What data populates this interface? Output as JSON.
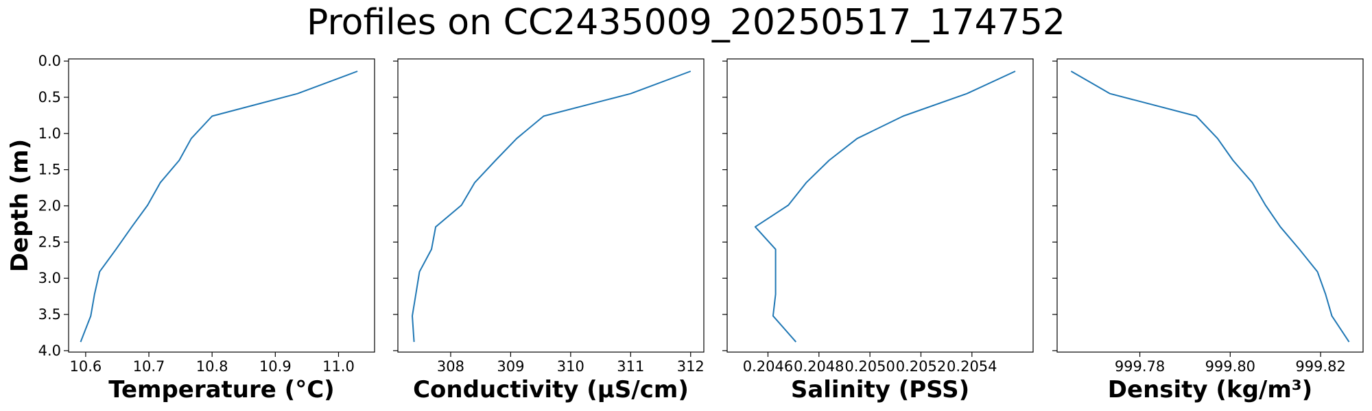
{
  "title": "Profiles on CC2435009_20250517_174752",
  "ylabel": "Depth (m)",
  "colors": {
    "line": "#1f77b4",
    "axes": "#000000",
    "background": "#ffffff"
  },
  "chart_data": [
    {
      "type": "line",
      "xlabel": "Temperature (°C)",
      "ylabel": "Depth (m)",
      "xlim": [
        10.573,
        11.057
      ],
      "ylim": [
        4.02,
        -0.03
      ],
      "y_inverted": true,
      "xticks": [
        "10.6",
        "10.7",
        "10.8",
        "10.9",
        "11.0"
      ],
      "xtick_values": [
        10.6,
        10.7,
        10.8,
        10.9,
        11.0
      ],
      "yticks": [
        "0.0",
        "0.5",
        "1.0",
        "1.5",
        "2.0",
        "2.5",
        "3.0",
        "3.5",
        "4.0"
      ],
      "ytick_values": [
        0.0,
        0.5,
        1.0,
        1.5,
        2.0,
        2.5,
        3.0,
        3.5,
        4.0
      ],
      "grid": false,
      "series": [
        {
          "x": [
            11.03,
            10.935,
            10.8,
            10.767,
            10.748,
            10.718,
            10.698,
            10.673,
            10.648,
            10.622,
            10.614,
            10.608,
            10.592
          ],
          "y": [
            0.14,
            0.45,
            0.76,
            1.07,
            1.37,
            1.68,
            1.99,
            2.29,
            2.6,
            2.91,
            3.22,
            3.52,
            3.88
          ]
        }
      ]
    },
    {
      "type": "line",
      "xlabel": "Conductivity (µS/cm)",
      "ylabel": "",
      "xlim": [
        307.12,
        312.22
      ],
      "ylim": [
        4.02,
        -0.03
      ],
      "y_inverted": true,
      "xticks": [
        "308",
        "309",
        "310",
        "311",
        "312"
      ],
      "xtick_values": [
        308,
        309,
        310,
        311,
        312
      ],
      "grid": false,
      "series": [
        {
          "x": [
            312.0,
            311.0,
            309.55,
            309.1,
            308.75,
            308.4,
            308.18,
            307.75,
            307.68,
            307.48,
            307.42,
            307.36,
            307.39
          ],
          "y": [
            0.14,
            0.45,
            0.76,
            1.07,
            1.37,
            1.68,
            1.99,
            2.29,
            2.6,
            2.91,
            3.22,
            3.52,
            3.88
          ]
        }
      ]
    },
    {
      "type": "line",
      "xlabel": "Salinity (PSS)",
      "ylabel": "",
      "xlim": [
        0.20444,
        0.20564
      ],
      "ylim": [
        4.02,
        -0.03
      ],
      "y_inverted": true,
      "xticks": [
        "0.2046",
        "0.2048",
        "0.2050",
        "0.2052",
        "0.2054"
      ],
      "xtick_values": [
        0.2046,
        0.2048,
        0.205,
        0.2052,
        0.2054
      ],
      "grid": false,
      "series": [
        {
          "x": [
            0.20557,
            0.20538,
            0.20513,
            0.20495,
            0.20484,
            0.20475,
            0.20468,
            0.20455,
            0.20463,
            0.20463,
            0.20463,
            0.20462,
            0.20471
          ],
          "y": [
            0.14,
            0.45,
            0.76,
            1.07,
            1.37,
            1.68,
            1.99,
            2.29,
            2.6,
            2.91,
            3.22,
            3.52,
            3.88
          ]
        }
      ]
    },
    {
      "type": "line",
      "xlabel": "Density (kg/m³)",
      "ylabel": "",
      "xlim": [
        999.7617,
        999.8294
      ],
      "ylim": [
        4.02,
        -0.03
      ],
      "y_inverted": true,
      "xticks": [
        "999.78",
        "999.80",
        "999.82"
      ],
      "xtick_values": [
        999.78,
        999.8,
        999.82
      ],
      "grid": false,
      "series": [
        {
          "x": [
            999.7648,
            999.7734,
            999.7925,
            999.7972,
            999.8006,
            999.8049,
            999.8078,
            999.8111,
            999.8153,
            999.8193,
            999.8211,
            999.8225,
            999.8263
          ],
          "y": [
            0.14,
            0.45,
            0.76,
            1.07,
            1.37,
            1.68,
            1.99,
            2.29,
            2.6,
            2.91,
            3.22,
            3.52,
            3.88
          ]
        }
      ]
    }
  ]
}
